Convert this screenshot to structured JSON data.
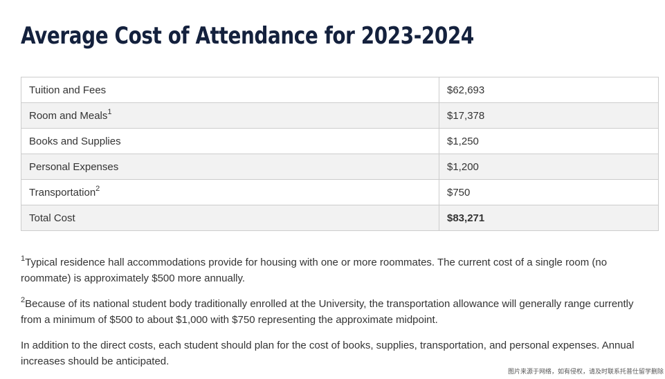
{
  "page": {
    "title": "Average Cost of Attendance for 2023-2024"
  },
  "table": {
    "rows": [
      {
        "label": "Tuition and Fees",
        "sup": "",
        "value": "$62,693"
      },
      {
        "label": "Room and Meals",
        "sup": "1",
        "value": "$17,378"
      },
      {
        "label": "Books and Supplies",
        "sup": "",
        "value": "$1,250"
      },
      {
        "label": "Personal Expenses",
        "sup": "",
        "value": "$1,200"
      },
      {
        "label": "Transportation",
        "sup": "2",
        "value": "$750"
      },
      {
        "label": "Total Cost",
        "sup": "",
        "value": "$83,271"
      }
    ]
  },
  "footnotes": {
    "fn1": {
      "marker": "1",
      "text": "Typical residence hall accommodations provide for housing with one or more roommates. The current cost of a single room (no roommate) is approximately $500 more annually."
    },
    "fn2": {
      "marker": "2",
      "text": "Because of its national student body traditionally enrolled at the University, the transportation allowance will generally range currently from a minimum of $500 to about $1,000 with $750 representing the approximate midpoint."
    },
    "note": "In addition to the direct costs, each student should plan for the cost of books, supplies, transportation, and personal expenses. Annual increases should be anticipated."
  },
  "watermark": {
    "text": "图片来源于网络，如有侵权，请及时联系托普仕留学删除"
  }
}
